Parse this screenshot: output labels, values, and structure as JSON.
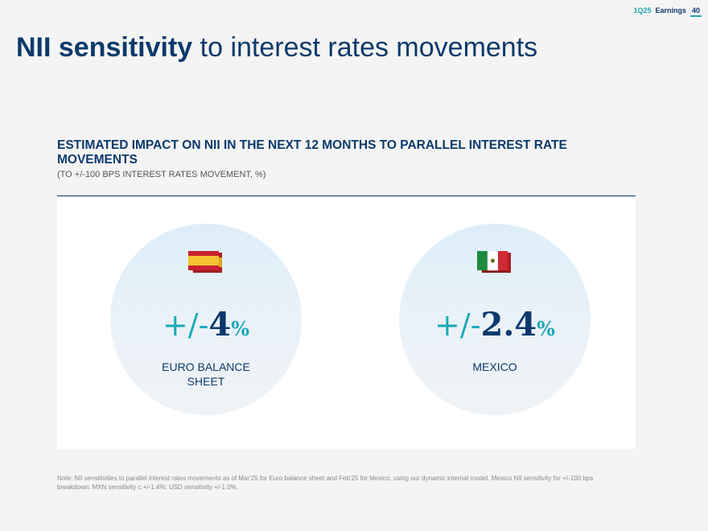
{
  "header": {
    "quarter": "1Q25",
    "section": "Earnings",
    "page": "40"
  },
  "title": {
    "bold": "NII sensitivity",
    "rest": " to interest rates movements"
  },
  "subtitle": "ESTIMATED IMPACT ON NII IN THE NEXT 12 MONTHS TO PARALLEL INTEREST RATE MOVEMENTS",
  "subnote": "(TO +/-100 BPS INTEREST RATES MOVEMENT, %)",
  "items": [
    {
      "flag": "spain-flag-icon",
      "plusminus": "+/-",
      "value": "4",
      "unit": "%",
      "label": "EURO BALANCE SHEET"
    },
    {
      "flag": "mexico-flag-icon",
      "plusminus": "+/-",
      "value": "2.4",
      "unit": "%",
      "label": "MEXICO"
    }
  ],
  "footnote": "Note: NII sensitivities to parallel interest rates movements as of Mar'25 for Euro balance sheet and Feb'25 for Mexico, using our dynamic internal model. Mexico NII sensitivity for +/-100 bps breakdown: MXN sensitivity c.+/-1.4%; USD sensitivity +/-1.0%.",
  "colors": {
    "navy": "#0b3a6b",
    "teal": "#1aa9b5"
  }
}
